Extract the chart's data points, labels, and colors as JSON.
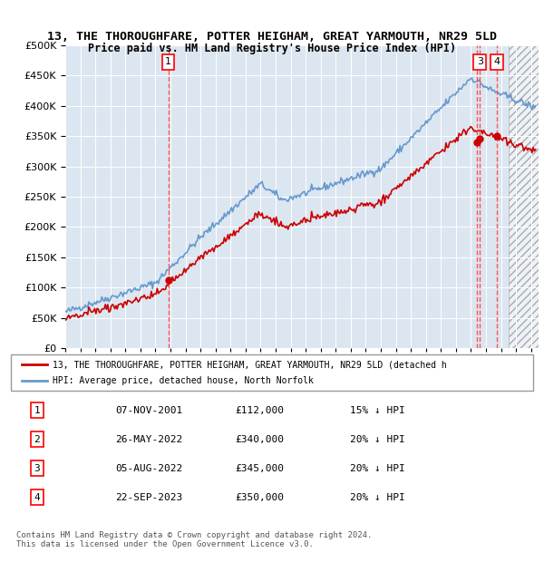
{
  "title1": "13, THE THOROUGHFARE, POTTER HEIGHAM, GREAT YARMOUTH, NR29 5LD",
  "title2": "Price paid vs. HM Land Registry's House Price Index (HPI)",
  "ylabel_ticks": [
    "£0",
    "£50K",
    "£100K",
    "£150K",
    "£200K",
    "£250K",
    "£300K",
    "£350K",
    "£400K",
    "£450K",
    "£500K"
  ],
  "ytick_vals": [
    0,
    50000,
    100000,
    150000,
    200000,
    250000,
    300000,
    350000,
    400000,
    450000,
    500000
  ],
  "xlim": [
    1995.0,
    2026.5
  ],
  "ylim": [
    0,
    500000
  ],
  "sale_dates_num": [
    2001.856,
    2022.399,
    2022.589,
    2023.728
  ],
  "sale_prices": [
    112000,
    340000,
    345000,
    350000
  ],
  "sale_labels": [
    "1",
    "2",
    "3",
    "4"
  ],
  "hpi_color": "#6699cc",
  "price_color": "#cc0000",
  "dashed_color": "#ff4444",
  "legend_label_price": "13, THE THOROUGHFARE, POTTER HEIGHAM, GREAT YARMOUTH, NR29 5LD (detached h",
  "legend_label_hpi": "HPI: Average price, detached house, North Norfolk",
  "table_rows": [
    [
      "1",
      "07-NOV-2001",
      "£112,000",
      "15% ↓ HPI"
    ],
    [
      "2",
      "26-MAY-2022",
      "£340,000",
      "20% ↓ HPI"
    ],
    [
      "3",
      "05-AUG-2022",
      "£345,000",
      "20% ↓ HPI"
    ],
    [
      "4",
      "22-SEP-2023",
      "£350,000",
      "20% ↓ HPI"
    ]
  ],
  "footnote": "Contains HM Land Registry data © Crown copyright and database right 2024.\nThis data is licensed under the Open Government Licence v3.0.",
  "bg_color": "#dce6f1",
  "hatch_color": "#cccccc",
  "grid_color": "#ffffff"
}
